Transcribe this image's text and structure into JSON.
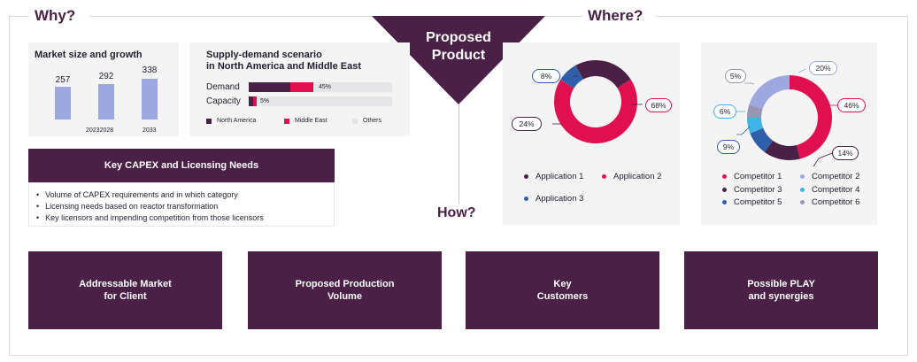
{
  "headings": {
    "why": "Why?",
    "where": "Where?",
    "how": "How?"
  },
  "triangle": {
    "line1": "Proposed",
    "line2": "Product"
  },
  "market": {
    "title": "Market size and growth",
    "bars": [
      {
        "value": "257",
        "year": ""
      },
      {
        "value": "292",
        "year": "20232028"
      },
      {
        "value": "338",
        "year": "2033"
      }
    ]
  },
  "supply": {
    "title_line1": "Supply-demand scenario",
    "title_line2": "in North America and Middle East",
    "rows": [
      {
        "label": "Demand",
        "pct": "45%",
        "na": 0.29,
        "me": 0.16
      },
      {
        "label": "Capacity",
        "pct": "5%",
        "na": 0.03,
        "me": 0.02
      }
    ],
    "legend": [
      "North America",
      "Middle East",
      "Others"
    ]
  },
  "capex": {
    "title": "Key CAPEX and Licensing Needs",
    "items": [
      "Volume of CAPEX requirements and in which category",
      "Licensing needs based on reactor transformation",
      "Key licensors and impending competition from those licensors"
    ]
  },
  "applications": {
    "slices": [
      {
        "label": "Application 1",
        "pct": 24,
        "text": "24%",
        "color": "#4a2047"
      },
      {
        "label": "Application 2",
        "pct": 68,
        "text": "68%",
        "color": "#e0104f"
      },
      {
        "label": "Application 3",
        "pct": 8,
        "text": "8%",
        "color": "#2f5fa8"
      }
    ]
  },
  "competitors": {
    "slices": [
      {
        "label": "Competitor 1",
        "pct": 46,
        "text": "46%",
        "color": "#e0104f"
      },
      {
        "label": "Competitor 3",
        "pct": 14,
        "text": "14%",
        "color": "#4a2047"
      },
      {
        "label": "Competitor 5",
        "pct": 9,
        "text": "9%",
        "color": "#2f5fa8"
      },
      {
        "label": "Competitor 4",
        "pct": 6,
        "text": "6%",
        "color": "#3db4e3"
      },
      {
        "label": "Competitor 6",
        "pct": 5,
        "text": "5%",
        "color": "#9a94b3"
      },
      {
        "label": "Competitor 2",
        "pct": 20,
        "text": "20%",
        "color": "#9ea8e0"
      }
    ]
  },
  "boxes": [
    {
      "line1": "Addressable Market",
      "line2": "for Client"
    },
    {
      "line1": "Proposed Production",
      "line2": "Volume"
    },
    {
      "line1": "Key",
      "line2": "Customers"
    },
    {
      "line1": "Possible PLAY",
      "line2": "and synergies"
    }
  ],
  "colors": {
    "accent": "#4a2047",
    "pink": "#e0104f",
    "bar": "#9ea8e0"
  }
}
